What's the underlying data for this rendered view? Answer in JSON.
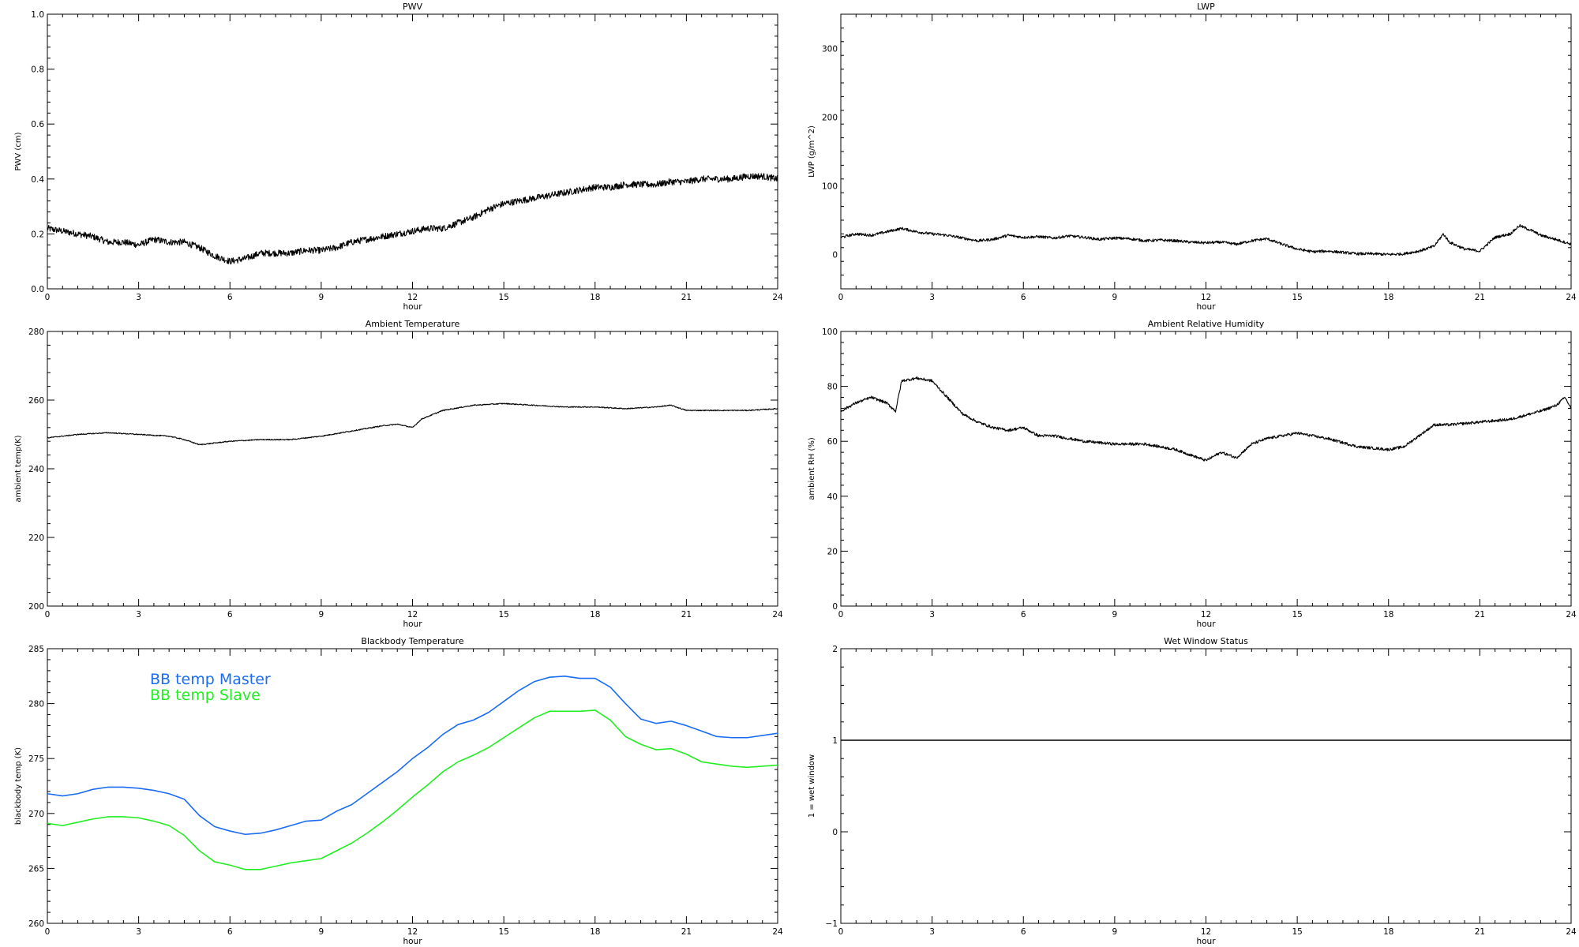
{
  "chart_data": [
    {
      "type": "line",
      "title": "PWV",
      "xlabel": "hour",
      "ylabel": "PWV (cm)",
      "xlim": [
        0,
        24
      ],
      "ylim": [
        0,
        1
      ],
      "xticks": [
        "0",
        "3",
        "6",
        "9",
        "12",
        "15",
        "18",
        "21",
        "24"
      ],
      "yticks": [
        "0.0",
        "0.2",
        "0.4",
        "0.6",
        "0.8",
        "1.0"
      ],
      "grid": false,
      "noise": 0.012,
      "series": [
        {
          "color": "#000000",
          "x": [
            0,
            0.5,
            1,
            1.5,
            2,
            2.5,
            3,
            3.5,
            4,
            4.5,
            5,
            5.5,
            6,
            6.5,
            7,
            7.5,
            8,
            8.5,
            9,
            9.5,
            10,
            10.5,
            11,
            11.5,
            12,
            12.5,
            13,
            13.5,
            14,
            14.5,
            15,
            15.5,
            16,
            16.5,
            17,
            17.5,
            18,
            18.5,
            19,
            19.5,
            20,
            20.5,
            21,
            21.5,
            22,
            22.5,
            23,
            23.5,
            24
          ],
          "y": [
            0.22,
            0.21,
            0.2,
            0.19,
            0.17,
            0.17,
            0.16,
            0.18,
            0.17,
            0.17,
            0.15,
            0.12,
            0.1,
            0.11,
            0.13,
            0.13,
            0.13,
            0.14,
            0.14,
            0.15,
            0.17,
            0.18,
            0.19,
            0.2,
            0.21,
            0.22,
            0.22,
            0.24,
            0.26,
            0.29,
            0.31,
            0.32,
            0.33,
            0.34,
            0.35,
            0.36,
            0.37,
            0.37,
            0.38,
            0.38,
            0.38,
            0.39,
            0.39,
            0.4,
            0.4,
            0.4,
            0.41,
            0.41,
            0.4
          ]
        }
      ]
    },
    {
      "type": "line",
      "title": "LWP",
      "xlabel": "hour",
      "ylabel": "LWP (g/m^2)",
      "xlim": [
        0,
        24
      ],
      "ylim": [
        -50,
        350
      ],
      "xticks": [
        "0",
        "3",
        "6",
        "9",
        "12",
        "15",
        "18",
        "21",
        "24"
      ],
      "yticks": [
        "0",
        "100",
        "200",
        "300"
      ],
      "grid": false,
      "noise": 2,
      "series": [
        {
          "color": "#000000",
          "x": [
            0,
            0.5,
            1,
            1.5,
            2,
            2.5,
            3,
            3.5,
            4,
            4.5,
            5,
            5.5,
            6,
            6.5,
            7,
            7.5,
            8,
            8.5,
            9,
            9.5,
            10,
            10.5,
            11,
            11.5,
            12,
            12.5,
            13,
            13.5,
            14,
            14.5,
            15,
            15.5,
            16,
            16.5,
            17,
            17.5,
            18,
            18.5,
            19,
            19.5,
            19.8,
            20,
            20.5,
            21,
            21.5,
            22,
            22.3,
            22.7,
            23,
            23.5,
            24
          ],
          "y": [
            25,
            30,
            28,
            33,
            38,
            33,
            30,
            28,
            24,
            20,
            22,
            28,
            25,
            26,
            24,
            27,
            25,
            22,
            24,
            23,
            20,
            21,
            20,
            18,
            17,
            18,
            15,
            20,
            23,
            15,
            8,
            4,
            5,
            3,
            1,
            1,
            0,
            1,
            5,
            12,
            30,
            18,
            8,
            5,
            25,
            30,
            42,
            35,
            28,
            22,
            15
          ]
        }
      ]
    },
    {
      "type": "line",
      "title": "Ambient Temperature",
      "xlabel": "hour",
      "ylabel": "ambient temp(K)",
      "xlim": [
        0,
        24
      ],
      "ylim": [
        200,
        280
      ],
      "xticks": [
        "0",
        "3",
        "6",
        "9",
        "12",
        "15",
        "18",
        "21",
        "24"
      ],
      "yticks": [
        "200",
        "220",
        "240",
        "260",
        "280"
      ],
      "grid": false,
      "noise": 0.15,
      "series": [
        {
          "color": "#000000",
          "x": [
            0,
            1,
            2,
            3,
            4,
            4.5,
            5,
            5.5,
            6,
            7,
            8,
            9,
            10,
            11,
            11.5,
            12,
            12.3,
            13,
            14,
            15,
            16,
            17,
            18,
            19,
            20,
            20.5,
            21,
            22,
            23,
            24
          ],
          "y": [
            249,
            250,
            250.5,
            250,
            249.5,
            248.5,
            247,
            247.5,
            248,
            248.5,
            248.5,
            249.5,
            251,
            252.5,
            253,
            252,
            254.5,
            257,
            258.5,
            259,
            258.5,
            258,
            258,
            257.5,
            258,
            258.5,
            257,
            257,
            257,
            257.5
          ]
        }
      ]
    },
    {
      "type": "line",
      "title": "Ambient Relative Humidity",
      "xlabel": "hour",
      "ylabel": "ambient RH (%)",
      "xlim": [
        0,
        24
      ],
      "ylim": [
        0,
        100
      ],
      "xticks": [
        "0",
        "3",
        "6",
        "9",
        "12",
        "15",
        "18",
        "21",
        "24"
      ],
      "yticks": [
        "0",
        "20",
        "40",
        "60",
        "80",
        "100"
      ],
      "grid": false,
      "noise": 0.5,
      "series": [
        {
          "color": "#000000",
          "x": [
            0,
            0.5,
            1,
            1.5,
            1.8,
            2,
            2.5,
            3,
            3.5,
            4,
            4.5,
            5,
            5.5,
            6,
            6.5,
            7,
            7.5,
            8,
            9,
            10,
            11,
            12,
            12.5,
            13,
            13.5,
            14,
            15,
            16,
            17,
            18,
            18.5,
            19,
            19.5,
            20,
            21,
            22,
            23,
            23.5,
            23.8,
            24
          ],
          "y": [
            71,
            74,
            76,
            74,
            71,
            82,
            83,
            82,
            76,
            70,
            67,
            65,
            64,
            65,
            62,
            62,
            61,
            60,
            59,
            59,
            57,
            53,
            56,
            54,
            59,
            61,
            63,
            61,
            58,
            57,
            58,
            62,
            66,
            66,
            67,
            68,
            71,
            73,
            76,
            72
          ]
        }
      ]
    },
    {
      "type": "line",
      "title": "Blackbody Temperature",
      "xlabel": "hour",
      "ylabel": "blackbody temp (K)",
      "xlim": [
        0,
        24
      ],
      "ylim": [
        260,
        285
      ],
      "xticks": [
        "0",
        "3",
        "6",
        "9",
        "12",
        "15",
        "18",
        "21",
        "24"
      ],
      "yticks": [
        "260",
        "265",
        "270",
        "275",
        "280",
        "285"
      ],
      "grid": false,
      "noise": 0,
      "legend": "upper-left, inside plot",
      "series": [
        {
          "name": "BB temp Master",
          "color": "#1a6cf0",
          "x": [
            0,
            0.5,
            1,
            1.5,
            2,
            2.5,
            3,
            3.5,
            4,
            4.5,
            5,
            5.5,
            6,
            6.5,
            7,
            7.5,
            8,
            8.5,
            9,
            9.5,
            10,
            10.5,
            11,
            11.5,
            12,
            12.5,
            13,
            13.5,
            14,
            14.5,
            15,
            15.5,
            16,
            16.5,
            17,
            17.5,
            18,
            18.5,
            19,
            19.5,
            20,
            20.5,
            21,
            21.5,
            22,
            22.5,
            23,
            23.5,
            24
          ],
          "y": [
            271.8,
            271.6,
            271.8,
            272.2,
            272.4,
            272.4,
            272.3,
            272.1,
            271.8,
            271.3,
            269.8,
            268.8,
            268.4,
            268.1,
            268.2,
            268.5,
            268.9,
            269.3,
            269.4,
            270.2,
            270.8,
            271.8,
            272.8,
            273.8,
            275.0,
            276.0,
            277.2,
            278.1,
            278.5,
            279.2,
            280.2,
            281.2,
            282.0,
            282.4,
            282.5,
            282.3,
            282.3,
            281.5,
            280.0,
            278.6,
            278.2,
            278.4,
            278.0,
            277.5,
            277.0,
            276.9,
            276.9,
            277.1,
            277.3
          ]
        },
        {
          "name": "BB temp Slave",
          "color": "#22ee22",
          "x": [
            0,
            0.5,
            1,
            1.5,
            2,
            2.5,
            3,
            3.5,
            4,
            4.5,
            5,
            5.5,
            6,
            6.5,
            7,
            7.5,
            8,
            8.5,
            9,
            9.5,
            10,
            10.5,
            11,
            11.5,
            12,
            12.5,
            13,
            13.5,
            14,
            14.5,
            15,
            15.5,
            16,
            16.5,
            17,
            17.5,
            18,
            18.5,
            19,
            19.5,
            20,
            20.5,
            21,
            21.5,
            22,
            22.5,
            23,
            23.5,
            24
          ],
          "y": [
            269.1,
            268.9,
            269.2,
            269.5,
            269.7,
            269.7,
            269.6,
            269.3,
            268.9,
            268.0,
            266.6,
            265.6,
            265.3,
            264.9,
            264.9,
            265.2,
            265.5,
            265.7,
            265.9,
            266.6,
            267.3,
            268.2,
            269.2,
            270.3,
            271.5,
            272.6,
            273.8,
            274.7,
            275.3,
            276.0,
            276.9,
            277.8,
            278.7,
            279.3,
            279.3,
            279.3,
            279.4,
            278.5,
            277.0,
            276.3,
            275.8,
            275.9,
            275.4,
            274.7,
            274.5,
            274.3,
            274.2,
            274.3,
            274.4
          ]
        }
      ]
    },
    {
      "type": "line",
      "title": "Wet Window Status",
      "xlabel": "hour",
      "ylabel": "1 = wet window",
      "xlim": [
        0,
        24
      ],
      "ylim": [
        -1,
        2
      ],
      "xticks": [
        "0",
        "3",
        "6",
        "9",
        "12",
        "15",
        "18",
        "21",
        "24"
      ],
      "yticks": [
        "−1",
        "0",
        "1",
        "2"
      ],
      "grid": false,
      "noise": 0,
      "series": [
        {
          "color": "#000000",
          "x": [
            0,
            24
          ],
          "y": [
            1,
            1
          ]
        }
      ]
    }
  ]
}
